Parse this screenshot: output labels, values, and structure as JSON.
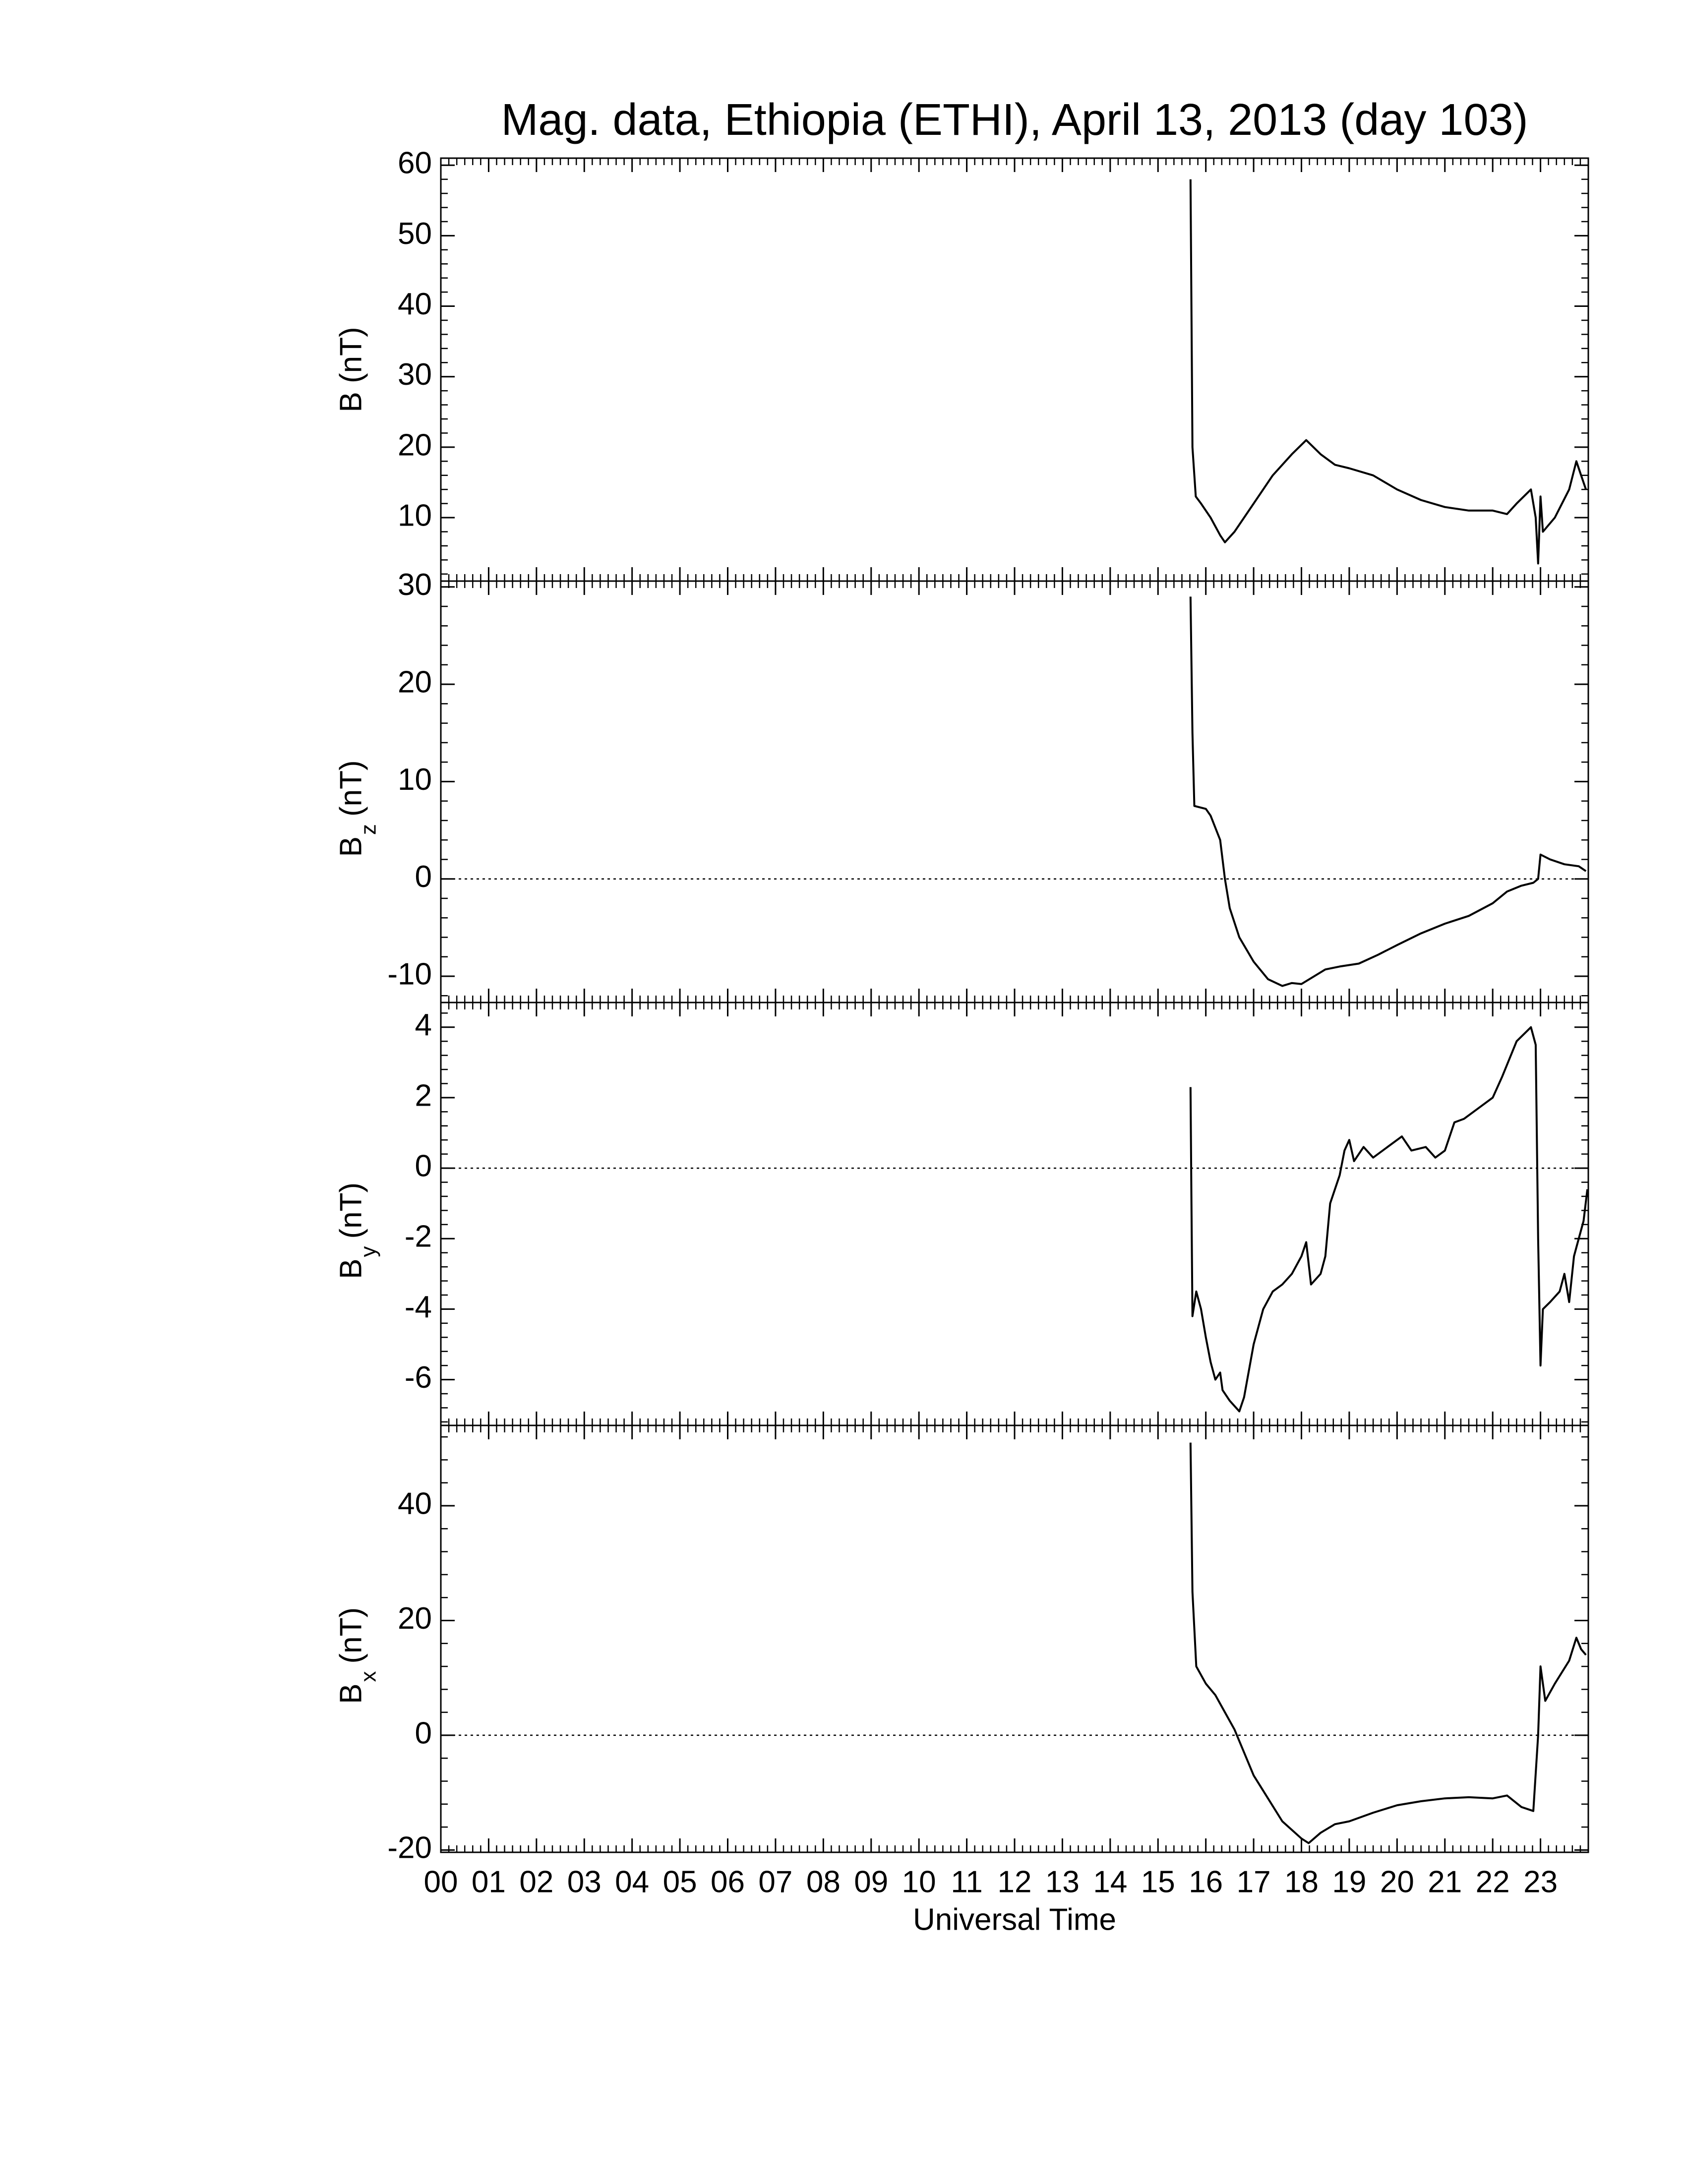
{
  "chart_data": [
    {
      "type": "line",
      "title": "Mag. data, Ethiopia (ETHI), April 13, 2013 (day 103)",
      "ylabel": "B (nT)",
      "xlim": [
        0,
        24
      ],
      "ylim": [
        1,
        61
      ],
      "yticks": [
        10,
        20,
        30,
        40,
        50,
        60
      ],
      "minor_ticks": true,
      "x": [
        15.68,
        15.72,
        15.79,
        15.9,
        16.1,
        16.3,
        16.4,
        16.6,
        17.0,
        17.4,
        17.8,
        18.1,
        18.4,
        18.7,
        19.0,
        19.5,
        20.0,
        20.5,
        21.0,
        21.5,
        22.0,
        22.3,
        22.5,
        22.8,
        22.9,
        22.95,
        23.0,
        23.05,
        23.3,
        23.6,
        23.75,
        23.85,
        23.95
      ],
      "series": [
        {
          "color": "#000000",
          "values": [
            58,
            20,
            13,
            12,
            10,
            7.5,
            6.5,
            8,
            12,
            16,
            19,
            21,
            19,
            17.5,
            17,
            16,
            14,
            12.5,
            11.5,
            11,
            11,
            10.5,
            12,
            14,
            10,
            3.5,
            13,
            8,
            10,
            14,
            18,
            16,
            14
          ]
        }
      ]
    },
    {
      "type": "line",
      "ylabel": "B",
      "ylabel_sub": "z",
      "ylabel_unit": "(nT)",
      "xlim": [
        0,
        24
      ],
      "ylim": [
        -12.7,
        30.6
      ],
      "yticks": [
        -10,
        0,
        10,
        20,
        30
      ],
      "minor_ticks": true,
      "zero_line": true,
      "x": [
        15.68,
        15.72,
        15.76,
        16.0,
        16.1,
        16.3,
        16.4,
        16.5,
        16.7,
        17.0,
        17.3,
        17.6,
        17.8,
        18.0,
        18.2,
        18.5,
        18.8,
        19.2,
        19.6,
        20.0,
        20.5,
        21.0,
        21.5,
        22.0,
        22.3,
        22.6,
        22.85,
        22.95,
        23.0,
        23.2,
        23.5,
        23.8,
        23.95
      ],
      "series": [
        {
          "color": "#000000",
          "values": [
            29,
            15,
            7.5,
            7.2,
            6.5,
            4,
            0,
            -3,
            -6,
            -8.5,
            -10.3,
            -11,
            -10.7,
            -10.8,
            -10.2,
            -9.3,
            -9,
            -8.7,
            -7.8,
            -6.8,
            -5.6,
            -4.6,
            -3.8,
            -2.5,
            -1.3,
            -0.7,
            -0.4,
            0,
            2.5,
            2,
            1.5,
            1.3,
            0.8
          ]
        }
      ]
    },
    {
      "type": "line",
      "ylabel": "B",
      "ylabel_sub": "y",
      "ylabel_unit": "(nT)",
      "xlim": [
        0,
        24
      ],
      "ylim": [
        -7.3,
        4.7
      ],
      "yticks": [
        -6,
        -4,
        -2,
        0,
        2,
        4
      ],
      "minor_ticks": true,
      "zero_line": true,
      "x": [
        15.68,
        15.7,
        15.72,
        15.8,
        15.9,
        16.0,
        16.1,
        16.2,
        16.3,
        16.35,
        16.5,
        16.7,
        16.8,
        17.0,
        17.2,
        17.4,
        17.6,
        17.8,
        18.0,
        18.1,
        18.2,
        18.4,
        18.5,
        18.6,
        18.8,
        18.9,
        19.0,
        19.1,
        19.3,
        19.5,
        19.8,
        20.1,
        20.3,
        20.6,
        20.8,
        21.0,
        21.2,
        21.4,
        21.7,
        22.0,
        22.2,
        22.5,
        22.8,
        22.9,
        22.95,
        23.0,
        23.05,
        23.2,
        23.4,
        23.5,
        23.6,
        23.7,
        23.8,
        23.9,
        23.98
      ],
      "series": [
        {
          "color": "#000000",
          "values": [
            2.3,
            -1,
            -4.2,
            -3.5,
            -4,
            -4.8,
            -5.5,
            -6,
            -5.8,
            -6.3,
            -6.6,
            -6.9,
            -6.5,
            -5,
            -4,
            -3.5,
            -3.3,
            -3,
            -2.5,
            -2.1,
            -3.3,
            -3.0,
            -2.5,
            -1.0,
            -0.2,
            0.5,
            0.8,
            0.2,
            0.6,
            0.3,
            0.6,
            0.9,
            0.5,
            0.6,
            0.3,
            0.5,
            1.3,
            1.4,
            1.7,
            2.0,
            2.6,
            3.6,
            4.0,
            3.5,
            -2,
            -5.6,
            -4,
            -3.8,
            -3.5,
            -3,
            -3.8,
            -2.5,
            -2.0,
            -1.5,
            -0.6
          ]
        }
      ]
    },
    {
      "type": "line",
      "ylabel": "B",
      "ylabel_sub": "x",
      "ylabel_unit": "(nT)",
      "xlabel": "Universal Time",
      "xlim": [
        0,
        24
      ],
      "ylim": [
        -20.4,
        54
      ],
      "yticks": [
        -20,
        0,
        20,
        40
      ],
      "minor_ticks": true,
      "zero_line": true,
      "xticks": [
        {
          "value": 0,
          "label": "00"
        },
        {
          "value": 1,
          "label": "01"
        },
        {
          "value": 2,
          "label": "02"
        },
        {
          "value": 3,
          "label": "03"
        },
        {
          "value": 4,
          "label": "04"
        },
        {
          "value": 5,
          "label": "05"
        },
        {
          "value": 6,
          "label": "06"
        },
        {
          "value": 7,
          "label": "07"
        },
        {
          "value": 8,
          "label": "08"
        },
        {
          "value": 9,
          "label": "09"
        },
        10,
        11,
        12,
        13,
        14,
        15,
        16,
        17,
        18,
        19,
        20,
        21,
        22,
        23
      ],
      "x": [
        15.68,
        15.72,
        15.8,
        16.0,
        16.2,
        16.4,
        16.6,
        16.8,
        17.0,
        17.3,
        17.6,
        18.0,
        18.15,
        18.4,
        18.7,
        19.0,
        19.5,
        20.0,
        20.5,
        21.0,
        21.5,
        22.0,
        22.3,
        22.6,
        22.85,
        22.95,
        23.0,
        23.1,
        23.3,
        23.6,
        23.75,
        23.85,
        23.95
      ],
      "series": [
        {
          "color": "#000000",
          "values": [
            51,
            25,
            12,
            9,
            7,
            4,
            1,
            -3,
            -7,
            -11,
            -15,
            -18,
            -18.8,
            -17,
            -15.5,
            -15,
            -13.5,
            -12.2,
            -11.5,
            -11,
            -10.8,
            -11,
            -10.5,
            -12.5,
            -13.2,
            0,
            12,
            6,
            9,
            13,
            17,
            15,
            14
          ]
        }
      ]
    }
  ]
}
